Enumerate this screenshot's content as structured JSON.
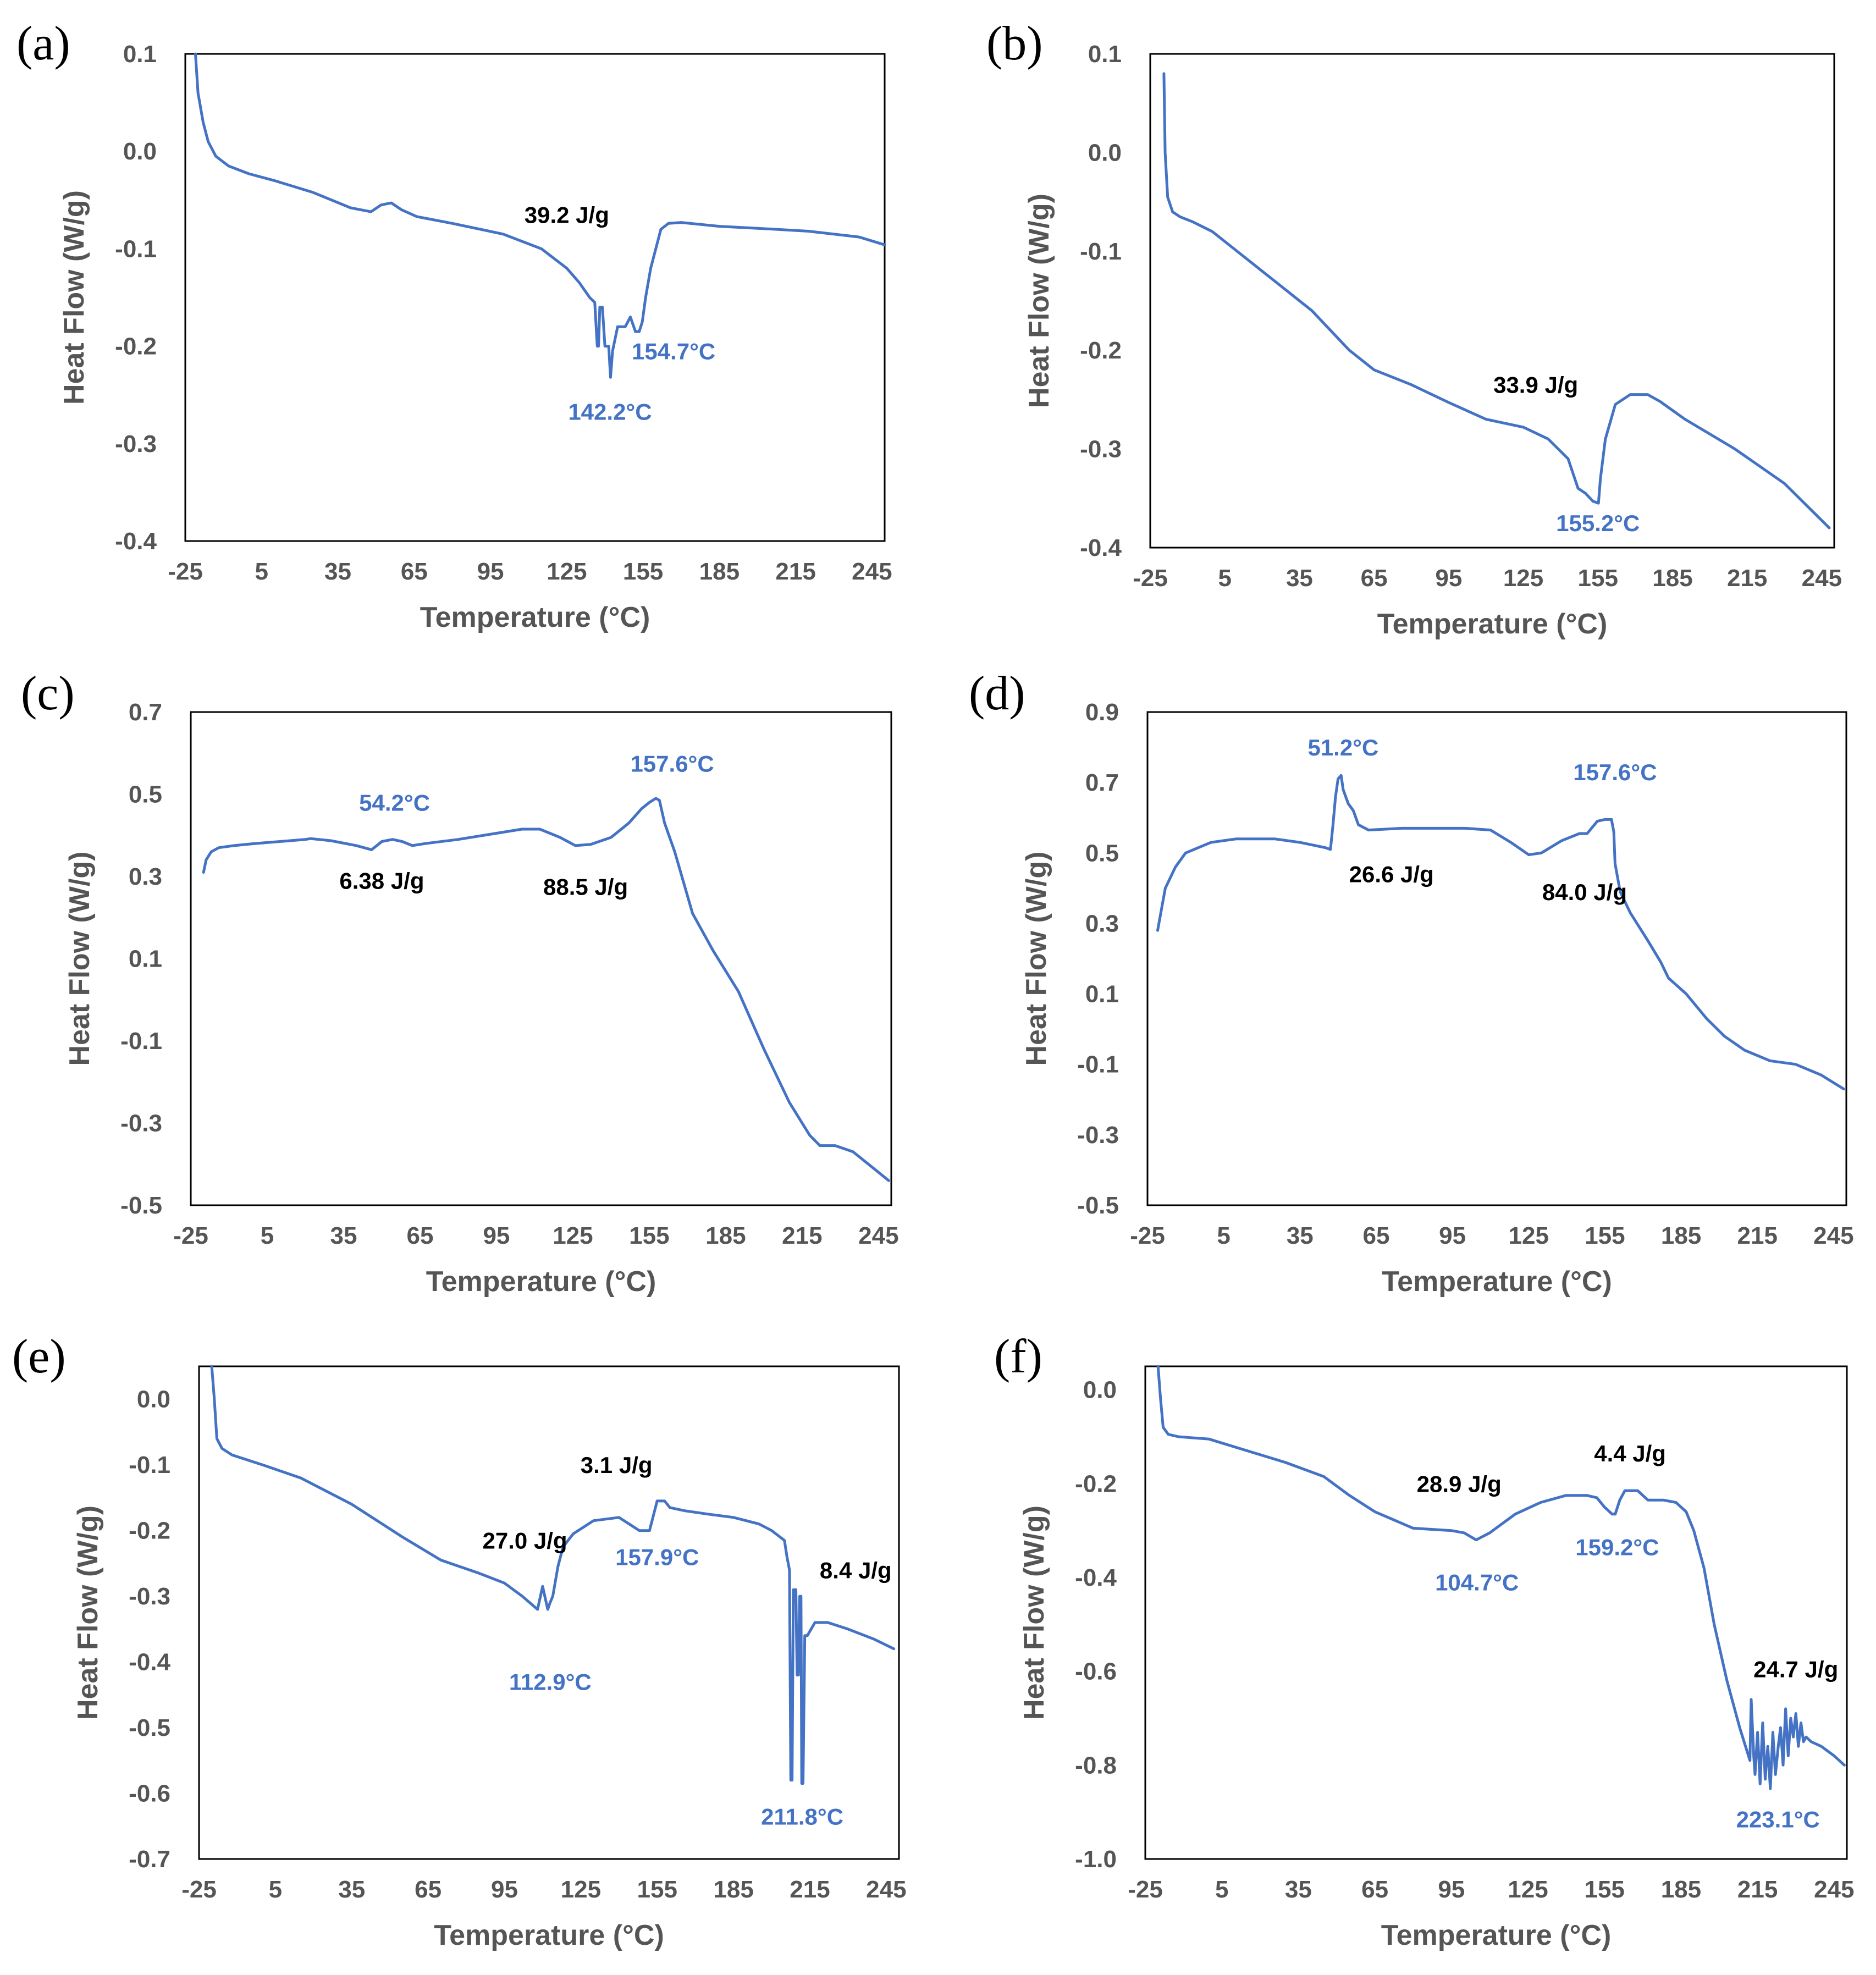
{
  "colors": {
    "series": "#4472C4",
    "temperature_label": "#4472C4",
    "enthalpy_label": "#000000",
    "frame": "#000000",
    "ticks": "#595959"
  },
  "chart_data": [
    {
      "panel": "(a)",
      "type": "line",
      "xlabel": "Temperature (°C)",
      "ylabel": "Heat Flow (W/g)",
      "xlim": [
        -25,
        250
      ],
      "ylim": [
        -0.4,
        0.1
      ],
      "xticks": [
        "-25",
        "5",
        "35",
        "65",
        "95",
        "125",
        "155",
        "185",
        "215",
        "245"
      ],
      "yticks": [
        "0.1",
        "0.0",
        "-0.1",
        "-0.2",
        "-0.3",
        "-0.4"
      ],
      "series": [
        {
          "x": [
            -21.0,
            -20.0,
            -18.0,
            -16.0,
            -13.0,
            -8.0,
            0.0,
            10.0,
            25.0,
            40.0,
            48.0,
            52.0,
            56.0,
            60.0,
            66.0,
            80.0,
            100.0,
            115.0,
            125.0,
            130.0,
            134.0,
            136.0,
            137.0,
            137.5,
            138.0,
            139.0,
            140.0,
            141.5,
            142.2,
            143.0,
            145.0,
            148.0,
            150.0,
            152.0,
            153.5,
            154.7,
            156.0,
            158.0,
            162.0,
            165.0,
            170.0,
            185.0,
            200.0,
            220.0,
            240.0,
            250.0
          ],
          "y": [
            0.1,
            0.06,
            0.03,
            0.01,
            -0.005,
            -0.015,
            -0.023,
            -0.03,
            -0.042,
            -0.058,
            -0.062,
            -0.055,
            -0.053,
            -0.06,
            -0.067,
            -0.074,
            -0.085,
            -0.1,
            -0.12,
            -0.135,
            -0.15,
            -0.155,
            -0.2,
            -0.2,
            -0.16,
            -0.16,
            -0.2,
            -0.2,
            -0.232,
            -0.205,
            -0.18,
            -0.18,
            -0.17,
            -0.185,
            -0.185,
            -0.175,
            -0.15,
            -0.12,
            -0.08,
            -0.074,
            -0.073,
            -0.077,
            -0.079,
            -0.082,
            -0.088,
            -0.096
          ]
        }
      ],
      "annotations": [
        {
          "text": "39.2 J/g",
          "x": 125,
          "y": -0.065,
          "role": "enthalpy"
        },
        {
          "text": "154.7°C",
          "x": 167,
          "y": -0.205,
          "role": "temperature"
        },
        {
          "text": "142.2°C",
          "x": 142,
          "y": -0.267,
          "role": "temperature"
        }
      ]
    },
    {
      "panel": "(b)",
      "type": "line",
      "xlabel": "Temperature (°C)",
      "ylabel": "Heat Flow (W/g)",
      "xlim": [
        -25,
        250
      ],
      "ylim": [
        -0.4,
        0.1
      ],
      "xticks": [
        "-25",
        "5",
        "35",
        "65",
        "95",
        "125",
        "155",
        "185",
        "215",
        "245"
      ],
      "yticks": [
        "0.1",
        "0.0",
        "-0.1",
        "-0.2",
        "-0.3",
        "-0.4"
      ],
      "series": [
        {
          "x": [
            -19.5,
            -19.0,
            -18.0,
            -16.0,
            -13.0,
            -8.0,
            0.0,
            10.0,
            25.0,
            40.0,
            55.0,
            65.0,
            80.0,
            95.0,
            110.0,
            125.0,
            135.0,
            143.0,
            147.0,
            150.0,
            153.0,
            155.2,
            156.0,
            158.0,
            162.0,
            168.0,
            175.0,
            180.0,
            190.0,
            210.0,
            230.0,
            248.0
          ],
          "y": [
            0.08,
            0.0,
            -0.045,
            -0.06,
            -0.065,
            -0.07,
            -0.08,
            -0.1,
            -0.13,
            -0.16,
            -0.2,
            -0.22,
            -0.235,
            -0.253,
            -0.27,
            -0.278,
            -0.29,
            -0.31,
            -0.34,
            -0.345,
            -0.353,
            -0.355,
            -0.33,
            -0.29,
            -0.255,
            -0.245,
            -0.245,
            -0.252,
            -0.27,
            -0.3,
            -0.335,
            -0.38
          ]
        }
      ],
      "annotations": [
        {
          "text": "33.9 J/g",
          "x": 130,
          "y": -0.235,
          "role": "enthalpy"
        },
        {
          "text": "155.2°C",
          "x": 155,
          "y": -0.375,
          "role": "temperature"
        }
      ]
    },
    {
      "panel": "(c)",
      "type": "line",
      "xlabel": "Temperature (°C)",
      "ylabel": "Heat Flow (W/g)",
      "xlim": [
        -25,
        250
      ],
      "ylim": [
        -0.5,
        0.7
      ],
      "xticks": [
        "-25",
        "5",
        "35",
        "65",
        "95",
        "125",
        "155",
        "185",
        "215",
        "245"
      ],
      "yticks": [
        "0.7",
        "0.5",
        "0.3",
        "0.1",
        "-0.1",
        "-0.3",
        "-0.5"
      ],
      "series": [
        {
          "x": [
            -20.0,
            -19.0,
            -17.0,
            -14.0,
            -8.0,
            0.0,
            10.0,
            20.0,
            22.0,
            30.0,
            40.0,
            46.0,
            50.0,
            54.2,
            58.0,
            62.0,
            67.0,
            80.0,
            95.0,
            105.0,
            112.0,
            120.0,
            126.0,
            132.0,
            140.0,
            147.0,
            152.0,
            155.0,
            157.6,
            159.0,
            161.0,
            165.0,
            172.0,
            180.0,
            190.0,
            200.0,
            210.0,
            218.0,
            222.0,
            228.0,
            235.0,
            243.0,
            249.0
          ],
          "y": [
            0.31,
            0.34,
            0.36,
            0.37,
            0.375,
            0.38,
            0.385,
            0.39,
            0.392,
            0.387,
            0.375,
            0.365,
            0.385,
            0.39,
            0.385,
            0.375,
            0.38,
            0.39,
            0.405,
            0.415,
            0.415,
            0.395,
            0.375,
            0.378,
            0.395,
            0.43,
            0.465,
            0.48,
            0.49,
            0.485,
            0.43,
            0.36,
            0.21,
            0.12,
            0.02,
            -0.12,
            -0.25,
            -0.33,
            -0.355,
            -0.355,
            -0.37,
            -0.41,
            -0.44
          ]
        }
      ],
      "annotations": [
        {
          "text": "157.6°C",
          "x": 164,
          "y": 0.575,
          "role": "temperature"
        },
        {
          "text": "54.2°C",
          "x": 55,
          "y": 0.48,
          "role": "temperature"
        },
        {
          "text": "6.38 J/g",
          "x": 50,
          "y": 0.29,
          "role": "enthalpy"
        },
        {
          "text": "88.5 J/g",
          "x": 130,
          "y": 0.275,
          "role": "enthalpy"
        }
      ]
    },
    {
      "panel": "(d)",
      "type": "line",
      "xlabel": "Temperature (°C)",
      "ylabel": "Heat Flow (W/g)",
      "xlim": [
        -25,
        250
      ],
      "ylim": [
        -0.5,
        0.9
      ],
      "xticks": [
        "-25",
        "5",
        "35",
        "65",
        "95",
        "125",
        "155",
        "185",
        "215",
        "245"
      ],
      "yticks": [
        "0.9",
        "0.7",
        "0.5",
        "0.3",
        "0.1",
        "-0.1",
        "-0.3",
        "-0.5"
      ],
      "series": [
        {
          "x": [
            -21.0,
            -20.0,
            -18.0,
            -14.0,
            -10.0,
            0.0,
            10.0,
            25.0,
            35.0,
            45.0,
            47.0,
            48.0,
            49.0,
            50.0,
            51.2,
            52.0,
            54.0,
            56.0,
            58.0,
            62.0,
            75.0,
            90.0,
            100.0,
            110.0,
            118.0,
            125.0,
            130.0,
            138.0,
            145.0,
            148.0,
            152.0,
            155.0,
            157.6,
            158.5,
            159.0,
            161.0,
            165.0,
            172.0,
            177.0,
            180.0,
            187.0,
            195.0,
            202.0,
            210.0,
            220.0,
            230.0,
            240.0,
            249.0
          ],
          "y": [
            0.28,
            0.32,
            0.4,
            0.46,
            0.5,
            0.53,
            0.54,
            0.54,
            0.53,
            0.515,
            0.51,
            0.58,
            0.66,
            0.71,
            0.72,
            0.68,
            0.64,
            0.62,
            0.58,
            0.565,
            0.57,
            0.57,
            0.57,
            0.565,
            0.53,
            0.495,
            0.5,
            0.535,
            0.555,
            0.555,
            0.59,
            0.595,
            0.595,
            0.56,
            0.47,
            0.39,
            0.33,
            0.25,
            0.19,
            0.145,
            0.1,
            0.03,
            -0.02,
            -0.06,
            -0.09,
            -0.1,
            -0.13,
            -0.17
          ]
        }
      ],
      "annotations": [
        {
          "text": "51.2°C",
          "x": 52,
          "y": 0.8,
          "role": "temperature"
        },
        {
          "text": "157.6°C",
          "x": 159,
          "y": 0.73,
          "role": "temperature"
        },
        {
          "text": "26.6 J/g",
          "x": 71,
          "y": 0.44,
          "role": "enthalpy"
        },
        {
          "text": "84.0 J/g",
          "x": 147,
          "y": 0.39,
          "role": "enthalpy"
        }
      ]
    },
    {
      "panel": "(e)",
      "type": "line",
      "xlabel": "Temperature (°C)",
      "ylabel": "Heat Flow (W/g)",
      "xlim": [
        -25,
        250
      ],
      "ylim": [
        -0.7,
        0.05
      ],
      "xticks": [
        "-25",
        "5",
        "35",
        "65",
        "95",
        "125",
        "155",
        "185",
        "215",
        "245"
      ],
      "yticks": [
        "0.0",
        "-0.1",
        "-0.2",
        "-0.3",
        "-0.4",
        "-0.5",
        "-0.6",
        "-0.7"
      ],
      "series": [
        {
          "x": [
            -20.0,
            -19.0,
            -18.0,
            -16.0,
            -12.0,
            0.0,
            15.0,
            35.0,
            55.0,
            70.0,
            85.0,
            95.0,
            102.0,
            105.0,
            108.0,
            110.0,
            112.0,
            112.9,
            114.0,
            116.0,
            118.0,
            122.0,
            130.0,
            140.0,
            148.0,
            152.0,
            155.0,
            157.9,
            160.0,
            166.0,
            175.0,
            185.0,
            195.0,
            200.0,
            205.0,
            206.0,
            207.0,
            207.5,
            208.0,
            208.5,
            209.5,
            210.0,
            210.5,
            211.0,
            211.5,
            211.8,
            212.3,
            213.0,
            214.0,
            217.0,
            222.0,
            230.0,
            240.0,
            248.0
          ],
          "y": [
            0.05,
            0.0,
            -0.06,
            -0.075,
            -0.085,
            -0.1,
            -0.12,
            -0.16,
            -0.21,
            -0.245,
            -0.265,
            -0.28,
            -0.3,
            -0.31,
            -0.32,
            -0.285,
            -0.32,
            -0.31,
            -0.3,
            -0.255,
            -0.225,
            -0.205,
            -0.185,
            -0.18,
            -0.2,
            -0.2,
            -0.155,
            -0.155,
            -0.165,
            -0.17,
            -0.175,
            -0.18,
            -0.19,
            -0.2,
            -0.215,
            -0.24,
            -0.26,
            -0.58,
            -0.58,
            -0.29,
            -0.29,
            -0.42,
            -0.42,
            -0.3,
            -0.3,
            -0.585,
            -0.585,
            -0.36,
            -0.36,
            -0.34,
            -0.34,
            -0.35,
            -0.365,
            -0.38
          ]
        }
      ],
      "annotations": [
        {
          "text": "3.1 J/g",
          "x": 139,
          "y": -0.1,
          "role": "enthalpy"
        },
        {
          "text": "27.0 J/g",
          "x": 103,
          "y": -0.215,
          "role": "enthalpy"
        },
        {
          "text": "157.9°C",
          "x": 155,
          "y": -0.24,
          "role": "temperature"
        },
        {
          "text": "8.4 J/g",
          "x": 233,
          "y": -0.26,
          "role": "enthalpy"
        },
        {
          "text": "112.9°C",
          "x": 113,
          "y": -0.43,
          "role": "temperature"
        },
        {
          "text": "211.8°C",
          "x": 212,
          "y": -0.635,
          "role": "temperature"
        }
      ]
    },
    {
      "panel": "(f)",
      "type": "line",
      "xlabel": "Temperature (°C)",
      "ylabel": "Heat Flow (W/g)",
      "xlim": [
        -25,
        250
      ],
      "ylim": [
        -1.0,
        0.05
      ],
      "xticks": [
        "-25",
        "5",
        "35",
        "65",
        "95",
        "125",
        "155",
        "185",
        "215",
        "245"
      ],
      "yticks": [
        "0.0",
        "-0.2",
        "-0.4",
        "-0.6",
        "-0.8",
        "-1.0"
      ],
      "series": [
        {
          "x": [
            -20.0,
            -19.0,
            -18.0,
            -16.0,
            -12.0,
            0.0,
            15.0,
            30.0,
            45.0,
            55.0,
            65.0,
            80.0,
            95.0,
            100.0,
            104.7,
            110.0,
            120.0,
            130.0,
            140.0,
            148.0,
            152.0,
            155.0,
            158.0,
            159.2,
            161.0,
            163.0,
            168.0,
            172.0,
            178.0,
            183.0,
            187.0,
            190.0,
            194.0,
            198.0,
            203.0,
            208.0,
            212.0,
            212.5,
            213.5,
            214.0,
            215.0,
            216.0,
            217.0,
            218.0,
            219.0,
            220.0,
            221.0,
            222.0,
            223.1,
            224.0,
            225.0,
            226.0,
            227.0,
            228.0,
            229.0,
            230.0,
            231.0,
            232.0,
            233.0,
            234.0,
            236.0,
            240.0,
            245.0,
            249.0
          ],
          "y": [
            0.05,
            -0.02,
            -0.08,
            -0.095,
            -0.1,
            -0.105,
            -0.13,
            -0.155,
            -0.185,
            -0.225,
            -0.26,
            -0.295,
            -0.3,
            -0.305,
            -0.32,
            -0.305,
            -0.265,
            -0.24,
            -0.225,
            -0.225,
            -0.23,
            -0.25,
            -0.265,
            -0.265,
            -0.235,
            -0.215,
            -0.215,
            -0.235,
            -0.235,
            -0.24,
            -0.26,
            -0.3,
            -0.38,
            -0.5,
            -0.62,
            -0.72,
            -0.79,
            -0.66,
            -0.78,
            -0.82,
            -0.73,
            -0.84,
            -0.71,
            -0.83,
            -0.76,
            -0.85,
            -0.73,
            -0.82,
            -0.76,
            -0.72,
            -0.8,
            -0.68,
            -0.78,
            -0.7,
            -0.74,
            -0.69,
            -0.76,
            -0.71,
            -0.75,
            -0.74,
            -0.75,
            -0.76,
            -0.78,
            -0.8
          ]
        }
      ],
      "annotations": [
        {
          "text": "4.4 J/g",
          "x": 165,
          "y": -0.135,
          "role": "enthalpy"
        },
        {
          "text": "28.9 J/g",
          "x": 98,
          "y": -0.2,
          "role": "enthalpy"
        },
        {
          "text": "159.2°C",
          "x": 160,
          "y": -0.335,
          "role": "temperature"
        },
        {
          "text": "104.7°C",
          "x": 105,
          "y": -0.41,
          "role": "temperature"
        },
        {
          "text": "24.7 J/g",
          "x": 230,
          "y": -0.595,
          "role": "enthalpy"
        },
        {
          "text": "223.1°C",
          "x": 223,
          "y": -0.915,
          "role": "temperature"
        }
      ]
    }
  ]
}
